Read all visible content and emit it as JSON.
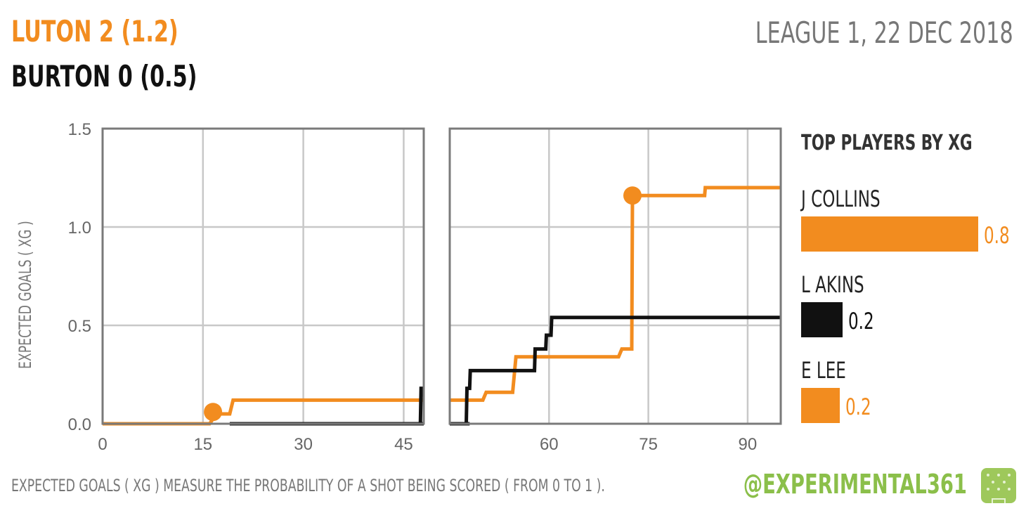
{
  "header": {
    "home_line": "LUTON 2 (1.2)",
    "away_line": "BURTON 0 (0.5)",
    "competition_date": "LEAGUE 1, 22 DEC 2018"
  },
  "footer": {
    "note": "EXPECTED GOALS ( XG ) MEASURE THE PROBABILITY OF A SHOT BEING SCORED ( FROM 0 TO 1 ).",
    "handle": "@EXPERIMENTAL361"
  },
  "colors": {
    "luton": "#f28c1f",
    "burton": "#111111",
    "grid": "#c8c8c8",
    "frame": "#7a7a7a",
    "logo": "#9ec85b"
  },
  "chart_data": {
    "type": "line",
    "title": "",
    "xlabel": "",
    "ylabel": "EXPECTED GOALS ( XG )",
    "ylim": [
      0,
      1.5
    ],
    "yticks": [
      "0.0",
      "0.5",
      "1.0",
      "1.5"
    ],
    "grid": true,
    "panels": [
      {
        "xlim": [
          0,
          48
        ],
        "xticks": [
          0,
          15,
          30,
          45
        ]
      },
      {
        "xlim": [
          45,
          95
        ],
        "xticks": [
          60,
          75,
          90
        ]
      }
    ],
    "series": [
      {
        "team": "Luton",
        "color": "#f28c1f",
        "step": true,
        "points": [
          [
            0,
            0
          ],
          [
            16,
            0
          ],
          [
            17,
            0.05
          ],
          [
            19,
            0.05
          ],
          [
            19.5,
            0.12
          ],
          [
            45,
            0.12
          ],
          [
            48,
            0.12
          ],
          [
            50,
            0.12
          ],
          [
            50.5,
            0.16
          ],
          [
            54.5,
            0.16
          ],
          [
            55,
            0.34
          ],
          [
            70.5,
            0.34
          ],
          [
            71,
            0.38
          ],
          [
            72.5,
            0.38
          ],
          [
            72.6,
            1.16
          ],
          [
            83.5,
            1.16
          ],
          [
            83.6,
            1.2
          ],
          [
            95,
            1.2
          ]
        ],
        "goals": [
          [
            16.5,
            0.06
          ],
          [
            72.6,
            1.16
          ]
        ]
      },
      {
        "team": "Burton",
        "color": "#111111",
        "step": true,
        "points": [
          [
            19,
            0
          ],
          [
            48,
            0
          ],
          [
            45,
            0
          ],
          [
            47.5,
            0
          ],
          [
            47.6,
            0.18
          ],
          [
            48,
            0.18
          ],
          [
            48.1,
            0.27
          ],
          [
            57.8,
            0.27
          ],
          [
            57.9,
            0.38
          ],
          [
            59.5,
            0.38
          ],
          [
            59.6,
            0.45
          ],
          [
            60.3,
            0.45
          ],
          [
            60.4,
            0.54
          ],
          [
            95,
            0.54
          ]
        ],
        "goals": []
      }
    ]
  },
  "top_players": {
    "title": "TOP PLAYERS BY XG",
    "max_value": 0.8,
    "players": [
      {
        "name": "J COLLINS",
        "value": 0.8,
        "label": "0.8",
        "color": "#f28c1f"
      },
      {
        "name": "L AKINS",
        "value": 0.2,
        "label": "0.2",
        "color": "#111111"
      },
      {
        "name": "E LEE",
        "value": 0.2,
        "label": "0.2",
        "color": "#f28c1f"
      }
    ]
  }
}
